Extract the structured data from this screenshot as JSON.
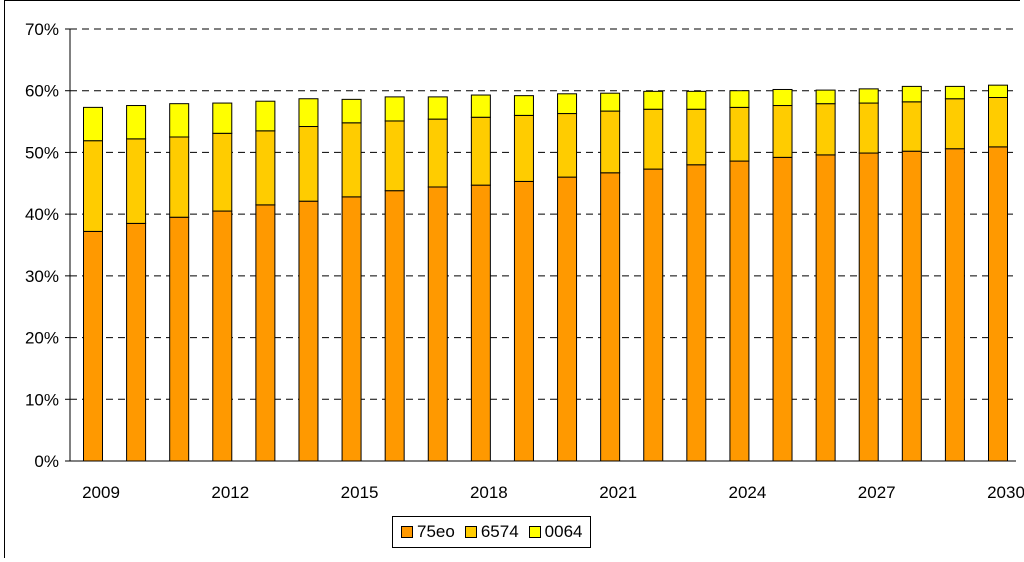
{
  "chart_data": {
    "type": "bar",
    "stacked": true,
    "categories": [
      "2009",
      "2010",
      "2011",
      "2012",
      "2013",
      "2014",
      "2015",
      "2016",
      "2017",
      "2018",
      "2019",
      "2020",
      "2021",
      "2022",
      "2023",
      "2024",
      "2025",
      "2026",
      "2027",
      "2028",
      "2029",
      "2030"
    ],
    "x_tick_labels": [
      "2009",
      "2012",
      "2015",
      "2018",
      "2021",
      "2024",
      "2027",
      "2030"
    ],
    "y_tick_labels": [
      "0%",
      "10%",
      "20%",
      "30%",
      "40%",
      "50%",
      "60%",
      "70%"
    ],
    "ylim": [
      0,
      70
    ],
    "y_unit": "%",
    "grid": "horizontal dashed",
    "legend_position": "bottom",
    "series": [
      {
        "name": "75eo",
        "color": "#FF9900",
        "values": [
          37.2,
          38.5,
          39.5,
          40.5,
          41.5,
          42.1,
          42.8,
          43.8,
          44.4,
          44.7,
          45.3,
          46.0,
          46.7,
          47.3,
          48.0,
          48.6,
          49.2,
          49.6,
          49.9,
          50.2,
          50.6,
          50.9
        ]
      },
      {
        "name": "6574",
        "color": "#FFCC00",
        "values": [
          14.7,
          13.7,
          13.0,
          12.6,
          12.0,
          12.1,
          12.0,
          11.3,
          11.0,
          11.0,
          10.7,
          10.3,
          10.0,
          9.7,
          9.0,
          8.7,
          8.4,
          8.3,
          8.1,
          8.0,
          8.1,
          8.0
        ]
      },
      {
        "name": "0064",
        "color": "#FFFF00",
        "values": [
          5.4,
          5.4,
          5.4,
          4.9,
          4.8,
          4.5,
          3.8,
          3.9,
          3.6,
          3.6,
          3.2,
          3.2,
          2.9,
          2.9,
          2.9,
          2.7,
          2.6,
          2.2,
          2.3,
          2.5,
          2.0,
          2.0
        ]
      }
    ]
  }
}
